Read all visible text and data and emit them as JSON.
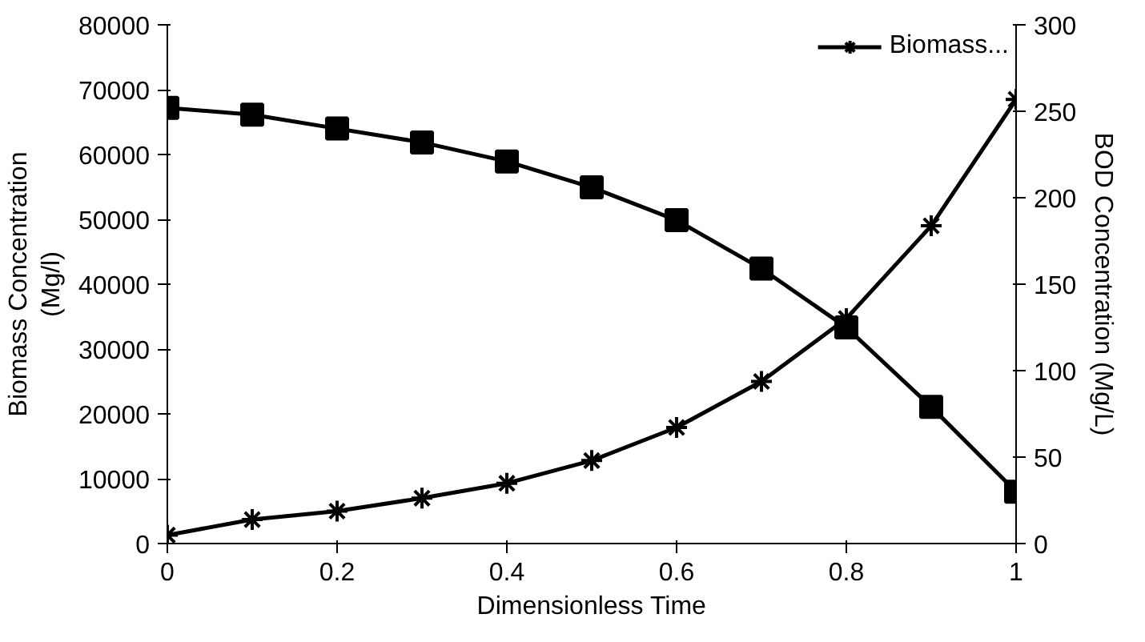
{
  "chart_data": {
    "type": "line",
    "xlabel": "Dimensionless Time",
    "ylabel": "Biomass Concentration (Mg/l)",
    "y2label": "BOD Concentration (Mg/L)",
    "x": [
      0,
      0.1,
      0.2,
      0.3,
      0.4,
      0.5,
      0.6,
      0.7,
      0.8,
      0.9,
      1
    ],
    "series": [
      {
        "name": "Biomass...",
        "color": "#000000",
        "marker": "cross",
        "values": [
          1300,
          3700,
          5000,
          7000,
          9300,
          12800,
          17900,
          25000,
          34700,
          49000,
          68500
        ]
      },
      {
        "color": "#000000",
        "marker": "square",
        "axis": "y2",
        "values": [
          252,
          248,
          240,
          232,
          221,
          206,
          187,
          159,
          125,
          79,
          30
        ]
      }
    ],
    "xlim": [
      0,
      1
    ],
    "xticks": [
      0,
      0.2,
      0.4,
      0.6,
      0.8,
      1
    ],
    "ylim": [
      0,
      80000
    ],
    "yticks": [
      0,
      10000,
      20000,
      30000,
      40000,
      50000,
      60000,
      70000,
      80000
    ],
    "y2lim": [
      0,
      300
    ],
    "y2ticks": [
      0,
      50,
      100,
      150,
      200,
      250,
      300
    ],
    "grid": false,
    "legend": "top right"
  }
}
